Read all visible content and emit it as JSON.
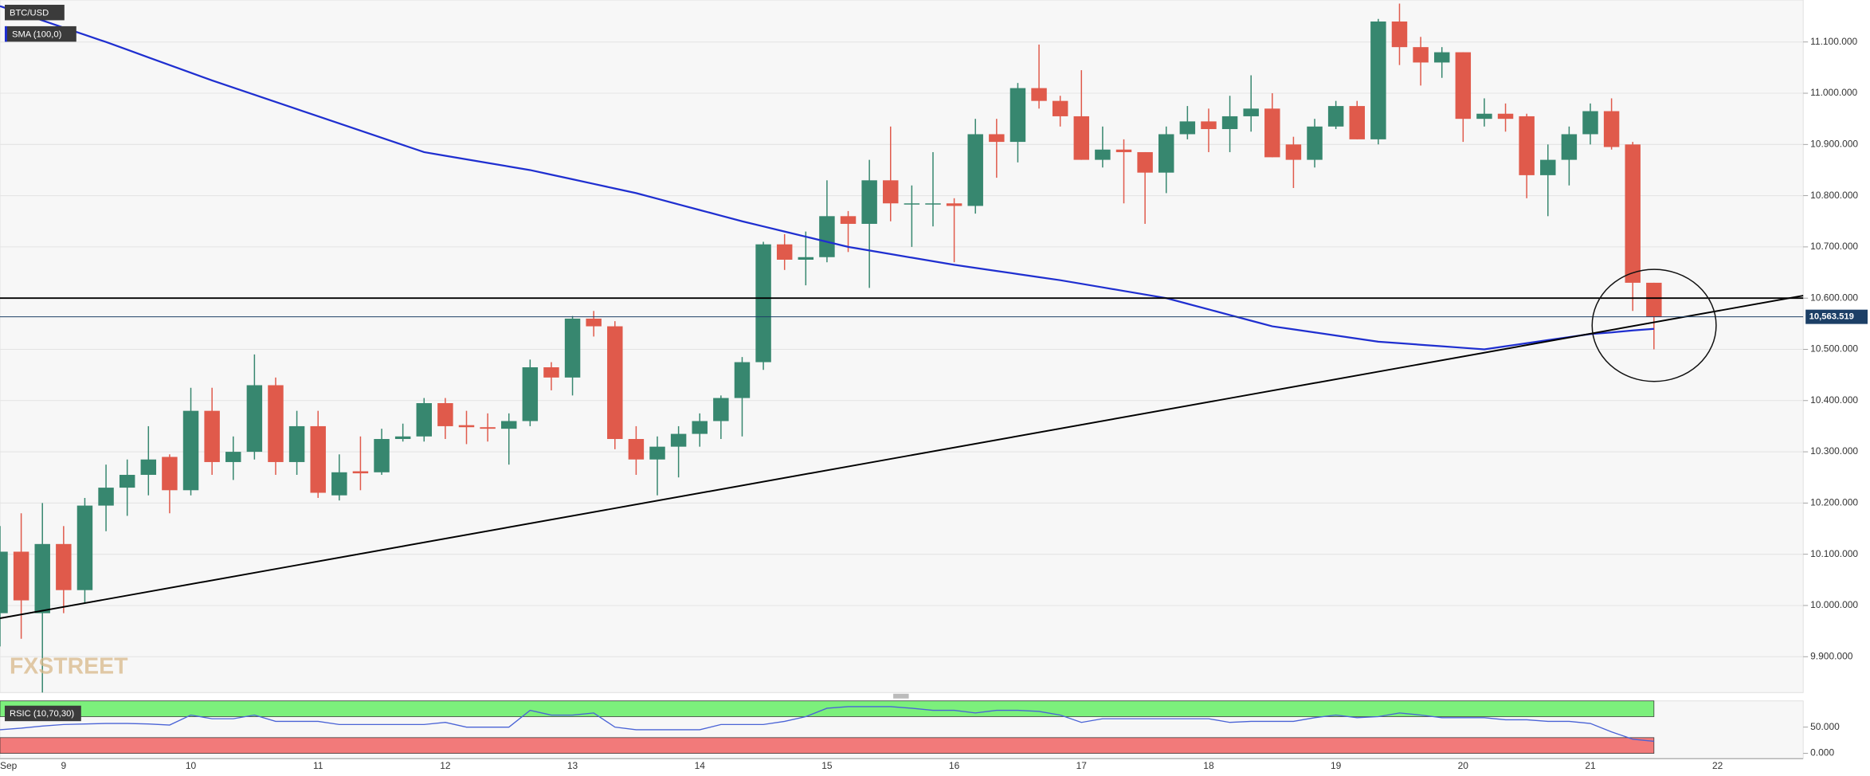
{
  "chart_data": [
    {
      "type": "candlestick",
      "categories": [
        "Sep",
        null,
        null,
        "9",
        null,
        null,
        null,
        null,
        null,
        "10",
        null,
        null,
        null,
        null,
        null,
        "11",
        null,
        null,
        null,
        null,
        null,
        "12",
        null,
        null,
        null,
        null,
        null,
        "13",
        null,
        null,
        null,
        null,
        null,
        "14",
        null,
        null,
        null,
        null,
        null,
        "15",
        null,
        null,
        null,
        null,
        null,
        "16",
        null,
        null,
        null,
        null,
        null,
        "17",
        null,
        null,
        null,
        null,
        null,
        "18",
        null,
        null,
        null,
        null,
        null,
        "19",
        null,
        null,
        null,
        null,
        null,
        "20",
        null,
        null,
        null,
        null,
        null,
        "21",
        null,
        null,
        null,
        null,
        null,
        "22"
      ],
      "series": [
        {
          "name": "BTC/USD",
          "up_color": "#37876f",
          "down_color": "#e05a4b",
          "open": [
            9985,
            10105,
            9985,
            10120,
            10030,
            10195,
            10230,
            10255,
            10290,
            10225,
            10380,
            10280,
            10300,
            10430,
            10280,
            10350,
            10215,
            10262,
            10260,
            10325,
            10330,
            10395,
            10352,
            10348,
            10345,
            10360,
            10465,
            10445,
            10560,
            10545,
            10325,
            10285,
            10310,
            10335,
            10360,
            10405,
            10475,
            10705,
            10675,
            10680,
            10760,
            10745,
            10830,
            10785,
            10785,
            10785,
            10780,
            10920,
            10905,
            11010,
            10985,
            10955,
            10870,
            10890,
            10885,
            10845,
            10920,
            10945,
            10930,
            10955,
            10970,
            10900,
            10870,
            10935,
            10975,
            10910,
            11140,
            11090,
            11060,
            11080,
            10950,
            10960,
            10955,
            10840,
            10870,
            10920,
            10965,
            10900,
            10630,
            null,
            null,
            null
          ],
          "high": [
            10155,
            10180,
            10200,
            10155,
            10210,
            10275,
            10285,
            10350,
            10295,
            10425,
            10425,
            10330,
            10490,
            10445,
            10380,
            10380,
            10295,
            10330,
            10345,
            10355,
            10405,
            10405,
            10380,
            10375,
            10375,
            10480,
            10475,
            10565,
            10575,
            10555,
            10350,
            10330,
            10350,
            10375,
            10410,
            10485,
            10710,
            10725,
            10730,
            10830,
            10770,
            10870,
            10935,
            10820,
            10885,
            10795,
            10950,
            10950,
            11020,
            11095,
            10995,
            11045,
            10935,
            10910,
            10885,
            10935,
            10975,
            10970,
            10995,
            11035,
            11000,
            10915,
            10950,
            10985,
            10985,
            11145,
            11175,
            11110,
            11090,
            11080,
            10990,
            10980,
            10960,
            10900,
            10935,
            10980,
            10990,
            10905,
            10630,
            null,
            null,
            null
          ],
          "low": [
            9920,
            9935,
            9830,
            9985,
            10005,
            10145,
            10175,
            10215,
            10180,
            10215,
            10255,
            10245,
            10285,
            10255,
            10255,
            10210,
            10205,
            10225,
            10255,
            10320,
            10320,
            10325,
            10315,
            10320,
            10275,
            10350,
            10420,
            10410,
            10525,
            10305,
            10255,
            10215,
            10250,
            10310,
            10325,
            10330,
            10460,
            10655,
            10625,
            10670,
            10690,
            10620,
            10750,
            10700,
            10740,
            10670,
            10765,
            10835,
            10865,
            10970,
            10935,
            10870,
            10855,
            10785,
            10745,
            10805,
            10910,
            10885,
            10885,
            10925,
            10875,
            10815,
            10855,
            10930,
            10910,
            10900,
            11055,
            11015,
            11030,
            10905,
            10935,
            10925,
            10795,
            10760,
            10820,
            10900,
            10890,
            10575,
            10500,
            null,
            null,
            null
          ],
          "close": [
            10105,
            10010,
            10120,
            10030,
            10195,
            10230,
            10255,
            10285,
            10225,
            10380,
            10280,
            10300,
            10430,
            10280,
            10350,
            10220,
            10260,
            10258,
            10325,
            10330,
            10395,
            10350,
            10348,
            10345,
            10360,
            10465,
            10445,
            10560,
            10545,
            10325,
            10285,
            10310,
            10335,
            10360,
            10405,
            10475,
            10705,
            10675,
            10680,
            10760,
            10745,
            10830,
            10785,
            10785,
            10785,
            10780,
            10920,
            10905,
            11010,
            10985,
            10955,
            10870,
            10890,
            10885,
            10845,
            10920,
            10945,
            10930,
            10955,
            10970,
            10875,
            10870,
            10935,
            10975,
            10910,
            11140,
            11090,
            11060,
            11080,
            10950,
            10960,
            10950,
            10840,
            10870,
            10920,
            10965,
            10895,
            10630,
            10563.519,
            null,
            null,
            null
          ]
        },
        {
          "name": "SMA (100,0)",
          "color": "#1f2fd0",
          "values": [
            11170,
            11156,
            11142,
            11128,
            11114,
            11100,
            11085,
            11070,
            11055,
            11040,
            11025,
            11011,
            10997,
            10983,
            10969,
            10955,
            10941,
            10927,
            10913,
            10899,
            10885,
            10878,
            10871,
            10864,
            10857,
            10850,
            10841,
            10832,
            10823,
            10814,
            10805,
            10794,
            10783,
            10772,
            10761,
            10750,
            10740,
            10730,
            10720,
            10710,
            10700,
            10693,
            10686,
            10679,
            10672,
            10665,
            10659,
            10653,
            10647,
            10641,
            10635,
            10628,
            10621,
            10614,
            10607,
            10600,
            10589,
            10578,
            10567,
            10556,
            10545,
            10539,
            10533,
            10527,
            10521,
            10515,
            10512,
            10509,
            10506,
            10503,
            10500,
            10506,
            10512,
            10518,
            10524,
            10530,
            10533,
            10537,
            10540,
            null,
            null,
            null
          ]
        }
      ],
      "trendline": {
        "x": [
          0,
          81
        ],
        "values": [
          9975,
          10575
        ],
        "color": "#000000"
      },
      "hline": {
        "value": 10600,
        "color": "#000000"
      },
      "last_price": {
        "value": 10563.519,
        "label": "10,563.519",
        "color": "#1c3f66"
      },
      "ylim": [
        9830,
        11182
      ],
      "yticks": [
        {
          "value": 9900,
          "label": "9.900.000"
        },
        {
          "value": 10000,
          "label": "10.000.000"
        },
        {
          "value": 10100,
          "label": "10.100.000"
        },
        {
          "value": 10200,
          "label": "10.200.000"
        },
        {
          "value": 10300,
          "label": "10.300.000"
        },
        {
          "value": 10400,
          "label": "10.400.000"
        },
        {
          "value": 10500,
          "label": "10.500.000"
        },
        {
          "value": 10600,
          "label": "10.600.000"
        },
        {
          "value": 10700,
          "label": "10.700.000"
        },
        {
          "value": 10800,
          "label": "10.800.000"
        },
        {
          "value": 10900,
          "label": "10.900.000"
        },
        {
          "value": 11000,
          "label": "11.000.000"
        },
        {
          "value": 11100,
          "label": "11.100.000"
        }
      ],
      "grid": true,
      "watermark": "FXSTREET"
    },
    {
      "type": "line",
      "name": "RSIC (10,70,30)",
      "color": "#4a63d6",
      "values": [
        45,
        48,
        52,
        55,
        56,
        57,
        57,
        56,
        54,
        73,
        66,
        66,
        73,
        61,
        61,
        61,
        55,
        55,
        55,
        55,
        55,
        59,
        50,
        50,
        50,
        82,
        73,
        73,
        77,
        50,
        45,
        45,
        45,
        45,
        55,
        55,
        55,
        61,
        70,
        86,
        89,
        89,
        89,
        86,
        82,
        82,
        77,
        82,
        82,
        80,
        73,
        59,
        66,
        66,
        66,
        66,
        66,
        66,
        59,
        61,
        61,
        61,
        68,
        73,
        68,
        70,
        77,
        73,
        68,
        68,
        68,
        64,
        64,
        61,
        61,
        57,
        41,
        27,
        23,
        null,
        null,
        null
      ],
      "bands": [
        {
          "from": 70,
          "to": 100,
          "color": "#7cf07c"
        },
        {
          "from": 0,
          "to": 30,
          "color": "#f27a7a"
        }
      ],
      "ylim": [
        0,
        100
      ],
      "yticks": [
        {
          "value": 0,
          "label": "0.000"
        },
        {
          "value": 50,
          "label": "50.000"
        }
      ]
    }
  ]
}
